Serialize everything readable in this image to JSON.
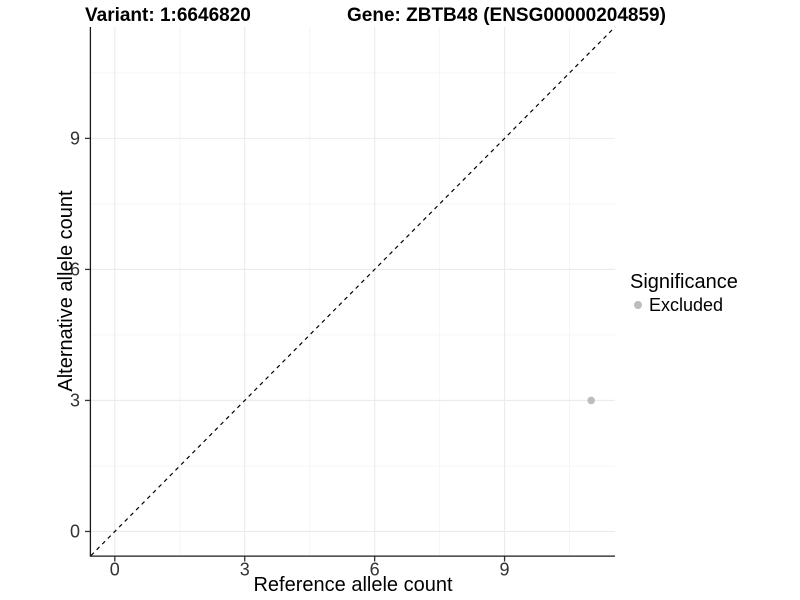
{
  "chart_data": {
    "type": "scatter",
    "title_left": "Variant: 1:6646820",
    "title_right": "Gene: ZBTB48 (ENSG00000204859)",
    "xlabel": "Reference allele count",
    "ylabel": "Alternative allele count",
    "xlim": [
      -0.55,
      11.55
    ],
    "ylim": [
      -0.55,
      11.55
    ],
    "xticks": [
      0,
      3,
      6,
      9
    ],
    "yticks": [
      0,
      3,
      6,
      9
    ],
    "minor_grid_step": 1.5,
    "grid": true,
    "legend_position": "right",
    "reference_line": {
      "name": "identity",
      "slope": 1,
      "intercept": 0,
      "style": "dashed",
      "color": "#000000"
    },
    "series": [
      {
        "name": "Excluded",
        "color": "#bdbdbd",
        "point_radius": 3.8,
        "points": [
          [
            11,
            3
          ]
        ]
      }
    ],
    "legend": {
      "title": "Significance",
      "items": [
        {
          "label": "Excluded",
          "color": "#bdbdbd"
        }
      ]
    },
    "colors": {
      "background": "#ffffff",
      "grid_major": "#ebebeb",
      "grid_minor": "#f5f5f5",
      "axis_line": "#1a1a1a",
      "tick_mark": "#333333",
      "tick_label": "#333333",
      "axis_title": "#000000",
      "plot_title": "#000000"
    }
  }
}
